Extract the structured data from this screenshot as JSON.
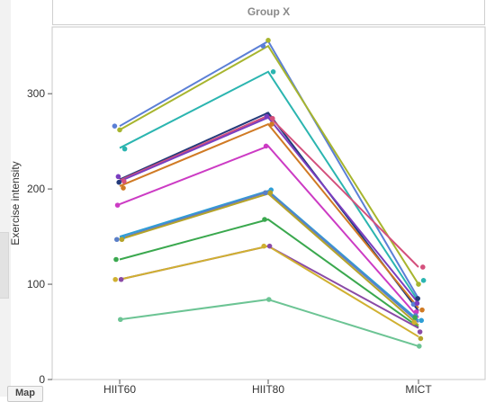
{
  "header": {
    "title": "Group X"
  },
  "corner": {
    "label": "Map"
  },
  "chart_data": {
    "type": "line",
    "title": "",
    "xlabel": "",
    "ylabel": "Exercise intensity",
    "categories": [
      "HIIT60",
      "HIIT80",
      "MICT"
    ],
    "ylim": [
      0,
      370
    ],
    "yticks": [
      0,
      100,
      200,
      300
    ],
    "grid": false,
    "legend": "none",
    "series": [
      {
        "color": "#5b7fd6",
        "values": [
          266,
          355,
          85
        ],
        "points": [
          266,
          350,
          79
        ]
      },
      {
        "color": "#a7b52e",
        "values": [
          262,
          350,
          100
        ],
        "points": [
          262,
          356,
          100
        ]
      },
      {
        "color": "#2bb5b0",
        "values": [
          243,
          323,
          82
        ],
        "points": [
          242,
          323,
          104
        ]
      },
      {
        "color": "#243a7a",
        "values": [
          210,
          280,
          72
        ],
        "points": [
          207,
          278,
          85
        ]
      },
      {
        "color": "#d4507c",
        "values": [
          209,
          277,
          118
        ],
        "points": [
          208,
          274,
          118
        ]
      },
      {
        "color": "#7a3ec0",
        "values": [
          208,
          275,
          80
        ],
        "points": [
          213,
          276,
          80
        ]
      },
      {
        "color": "#d07a24",
        "values": [
          203,
          268,
          75
        ],
        "points": [
          201,
          268,
          73
        ]
      },
      {
        "color": "#cc3bc4",
        "values": [
          184,
          245,
          65
        ],
        "points": [
          183,
          245,
          71
        ]
      },
      {
        "color": "#2e9ed6",
        "values": [
          150,
          198,
          62
        ],
        "points": [
          149,
          199,
          62
        ]
      },
      {
        "color": "#5a7fc8",
        "values": [
          148,
          197,
          60
        ],
        "points": [
          147,
          196,
          67
        ]
      },
      {
        "color": "#b5a32a",
        "values": [
          147,
          195,
          57
        ],
        "points": [
          147,
          196,
          43
        ]
      },
      {
        "color": "#3aa84e",
        "values": [
          126,
          168,
          55
        ],
        "points": [
          126,
          168,
          65
        ]
      },
      {
        "color": "#8a4aa6",
        "values": [
          105,
          140,
          54
        ],
        "points": [
          105,
          140,
          50
        ]
      },
      {
        "color": "#d0b030",
        "values": [
          105,
          140,
          45
        ],
        "points": [
          105,
          140,
          60
        ]
      },
      {
        "color": "#6cc494",
        "values": [
          63,
          84,
          35
        ],
        "points": [
          63,
          84,
          35
        ]
      }
    ]
  }
}
